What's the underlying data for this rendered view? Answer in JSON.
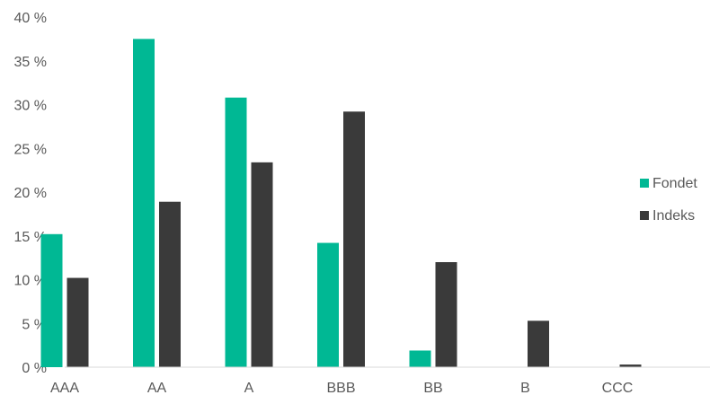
{
  "chart_data": {
    "type": "bar",
    "categories": [
      "AAA",
      "AA",
      "A",
      "BBB",
      "BB",
      "B",
      "CCC"
    ],
    "series": [
      {
        "name": "Fondet",
        "color": "#00b894",
        "values": [
          15.2,
          37.5,
          30.8,
          14.2,
          1.9,
          0.0,
          0.0
        ]
      },
      {
        "name": "Indeks",
        "color": "#3a3a3a",
        "values": [
          10.2,
          18.9,
          23.4,
          29.2,
          12.0,
          5.3,
          0.3
        ]
      }
    ],
    "ylim": [
      0,
      40
    ],
    "yticks": [
      0,
      5,
      10,
      15,
      20,
      25,
      30,
      35,
      40
    ],
    "ytick_labels": [
      "0 %",
      "5 %",
      "10 %",
      "15 %",
      "20 %",
      "25 %",
      "30 %",
      "35 %",
      "40 %"
    ],
    "grid": false,
    "legend_position": "right"
  }
}
